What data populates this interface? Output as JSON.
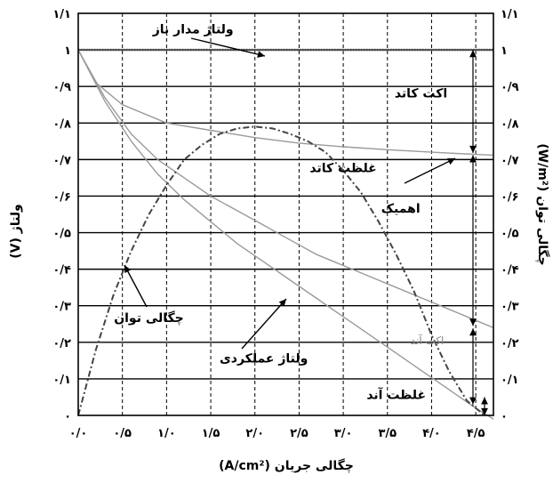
{
  "chart_data": {
    "type": "line",
    "xlabel": "چگالی جریان (A/cm²)",
    "ylabel_left": "ولتاژ (V)",
    "ylabel_right": "چگالی توان (W/m²)",
    "xlim": [
      0,
      4.7
    ],
    "ylim": [
      0,
      1.1
    ],
    "x_tick_labels": [
      "۰/۰",
      "۰/۵",
      "۱/۰",
      "۱/۵",
      "۲/۰",
      "۲/۵",
      "۳/۰",
      "۳/۵",
      "۴/۰",
      "۴/۵"
    ],
    "x_tick_values": [
      0,
      0.5,
      1.0,
      1.5,
      2.0,
      2.5,
      3.0,
      3.5,
      4.0,
      4.5
    ],
    "y_tick_labels": [
      "۰",
      "۰/۱",
      "۰/۲",
      "۰/۳",
      "۰/۴",
      "۰/۵",
      "۰/۶",
      "۰/۷",
      "۰/۸",
      "۰/۹",
      "۱",
      "۱/۱"
    ],
    "y_tick_values": [
      0,
      0.1,
      0.2,
      0.3,
      0.4,
      0.5,
      0.6,
      0.7,
      0.8,
      0.9,
      1.0,
      1.1
    ],
    "grid": {
      "x": "dashed",
      "y": "solid"
    },
    "series": [
      {
        "name": "ولتاژ مدار باز",
        "style": "dotted",
        "color": "#555555",
        "x": [
          0,
          4.7
        ],
        "y": [
          1.0,
          1.0
        ]
      },
      {
        "name": "ولتاژ عملکردی",
        "style": "solid",
        "color": "#9a9a9a",
        "x": [
          0,
          0.3,
          0.6,
          0.9,
          1.2,
          1.5,
          1.8,
          2.1,
          2.4,
          2.7,
          3.0,
          3.3,
          3.6,
          3.9,
          4.2,
          4.5,
          4.7
        ],
        "y": [
          1.0,
          0.86,
          0.75,
          0.66,
          0.59,
          0.53,
          0.47,
          0.42,
          0.37,
          0.32,
          0.27,
          0.22,
          0.17,
          0.12,
          0.07,
          0.02,
          -0.01
        ]
      },
      {
        "name": "",
        "style": "solid",
        "color": "#9a9a9a",
        "x": [
          0,
          0.3,
          0.6,
          0.9,
          1.2,
          1.5,
          1.8,
          2.1,
          2.4,
          2.7,
          3.0,
          3.3,
          3.6,
          3.9,
          4.2,
          4.5,
          4.7
        ],
        "y": [
          1.0,
          0.87,
          0.77,
          0.7,
          0.65,
          0.6,
          0.56,
          0.52,
          0.48,
          0.44,
          0.41,
          0.38,
          0.35,
          0.32,
          0.29,
          0.26,
          0.24
        ]
      },
      {
        "name": "",
        "style": "solid",
        "color": "#9a9a9a",
        "x": [
          0,
          0.2,
          0.5,
          1.0,
          1.5,
          2.0,
          2.5,
          3.0,
          3.5,
          4.0,
          4.5,
          4.7
        ],
        "y": [
          1.0,
          0.91,
          0.85,
          0.8,
          0.78,
          0.76,
          0.745,
          0.735,
          0.727,
          0.72,
          0.714,
          0.712
        ]
      },
      {
        "name": "چگالی توان",
        "style": "dashdot",
        "color": "#444444",
        "x": [
          0,
          0.2,
          0.4,
          0.6,
          0.8,
          1.0,
          1.2,
          1.4,
          1.6,
          1.8,
          2.0,
          2.2,
          2.4,
          2.6,
          2.8,
          3.0,
          3.2,
          3.4,
          3.6,
          3.8,
          4.0,
          4.2,
          4.4,
          4.6
        ],
        "y": [
          0.0,
          0.18,
          0.33,
          0.45,
          0.55,
          0.63,
          0.7,
          0.74,
          0.77,
          0.785,
          0.79,
          0.785,
          0.77,
          0.75,
          0.72,
          0.67,
          0.61,
          0.53,
          0.44,
          0.34,
          0.22,
          0.12,
          0.04,
          0.0
        ]
      }
    ],
    "annotations": [
      {
        "text": "ولتاژ مدار باز",
        "x": 1.3,
        "y": 1.045,
        "kind": "label"
      },
      {
        "text": "اکت کاتد",
        "x": 3.88,
        "y": 0.87,
        "kind": "label"
      },
      {
        "text": "غلظت کاتد",
        "x": 3.0,
        "y": 0.665,
        "kind": "label"
      },
      {
        "text": "اهمیک",
        "x": 3.65,
        "y": 0.555,
        "kind": "label"
      },
      {
        "text": "چگالی توان",
        "x": 0.8,
        "y": 0.255,
        "kind": "label"
      },
      {
        "text": "ولتاژ عملکردی",
        "x": 2.1,
        "y": 0.145,
        "kind": "label"
      },
      {
        "text": "اکت آند",
        "x": 3.95,
        "y": 0.195,
        "kind": "label-light"
      },
      {
        "text": "غلظت آند",
        "x": 3.6,
        "y": 0.045,
        "kind": "label"
      }
    ]
  }
}
